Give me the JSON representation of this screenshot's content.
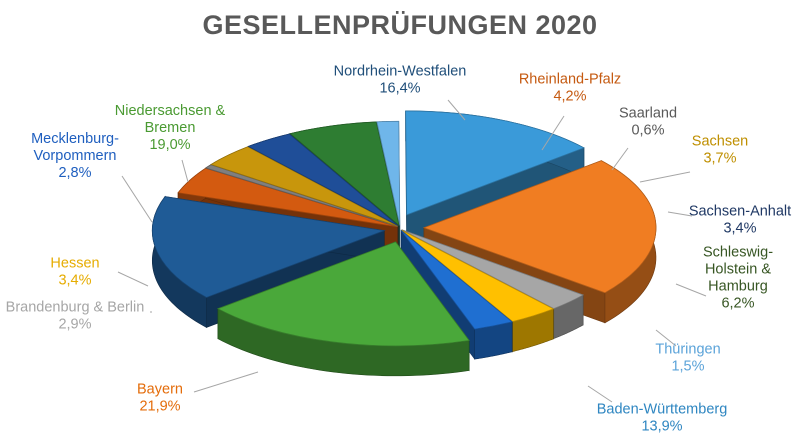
{
  "chart_data": {
    "type": "pie",
    "title": "GESELLENPRÜFUNGEN 2020",
    "slices": [
      {
        "lines": [
          "Nordrhein-Westfalen"
        ],
        "value_label": "16,4%",
        "value": 16.4,
        "color": "#1f5b96",
        "label_color": "#1f4e79"
      },
      {
        "lines": [
          "Rheinland-Pfalz"
        ],
        "value_label": "4,2%",
        "value": 4.2,
        "color": "#d35a10",
        "label_color": "#c55a11"
      },
      {
        "lines": [
          "Saarland"
        ],
        "value_label": "0,6%",
        "value": 0.6,
        "color": "#7f7f7f",
        "label_color": "#595959"
      },
      {
        "lines": [
          "Sachsen"
        ],
        "value_label": "3,7%",
        "value": 3.7,
        "color": "#c8960c",
        "label_color": "#bf8f00"
      },
      {
        "lines": [
          "Sachsen-Anhalt"
        ],
        "value_label": "3,4%",
        "value": 3.4,
        "color": "#1f4e98",
        "label_color": "#1f3864"
      },
      {
        "lines": [
          "Schleswig-",
          "Holstein &",
          "Hamburg"
        ],
        "value_label": "6,2%",
        "value": 6.2,
        "color": "#2e7d32",
        "label_color": "#375623"
      },
      {
        "lines": [
          "Thüringen"
        ],
        "value_label": "1,5%",
        "value": 1.5,
        "color": "#6fb6ea",
        "label_color": "#5ba3d9"
      },
      {
        "lines": [
          "Baden-Württemberg"
        ],
        "value_label": "13,9%",
        "value": 13.9,
        "color": "#3a9ad9",
        "label_color": "#2e86c1"
      },
      {
        "lines": [
          "Bayern"
        ],
        "value_label": "21,9%",
        "value": 21.9,
        "color": "#f07d22",
        "label_color": "#e46c0a"
      },
      {
        "lines": [
          "Brandenburg & Berlin"
        ],
        "value_label": "2,9%",
        "value": 2.9,
        "color": "#a6a6a6",
        "label_color": "#a6a6a6"
      },
      {
        "lines": [
          "Hessen"
        ],
        "value_label": "3,4%",
        "value": 3.4,
        "color": "#ffc000",
        "label_color": "#e6ac00"
      },
      {
        "lines": [
          "Mecklenburg-",
          "Vorpommern"
        ],
        "value_label": "2,8%",
        "value": 2.8,
        "color": "#1f6fd1",
        "label_color": "#1f5fbf"
      },
      {
        "lines": [
          "Niedersachsen &",
          "Bremen"
        ],
        "value_label": "19,0%",
        "value": 19.0,
        "color": "#4aa83a",
        "label_color": "#4a9a32"
      }
    ]
  }
}
